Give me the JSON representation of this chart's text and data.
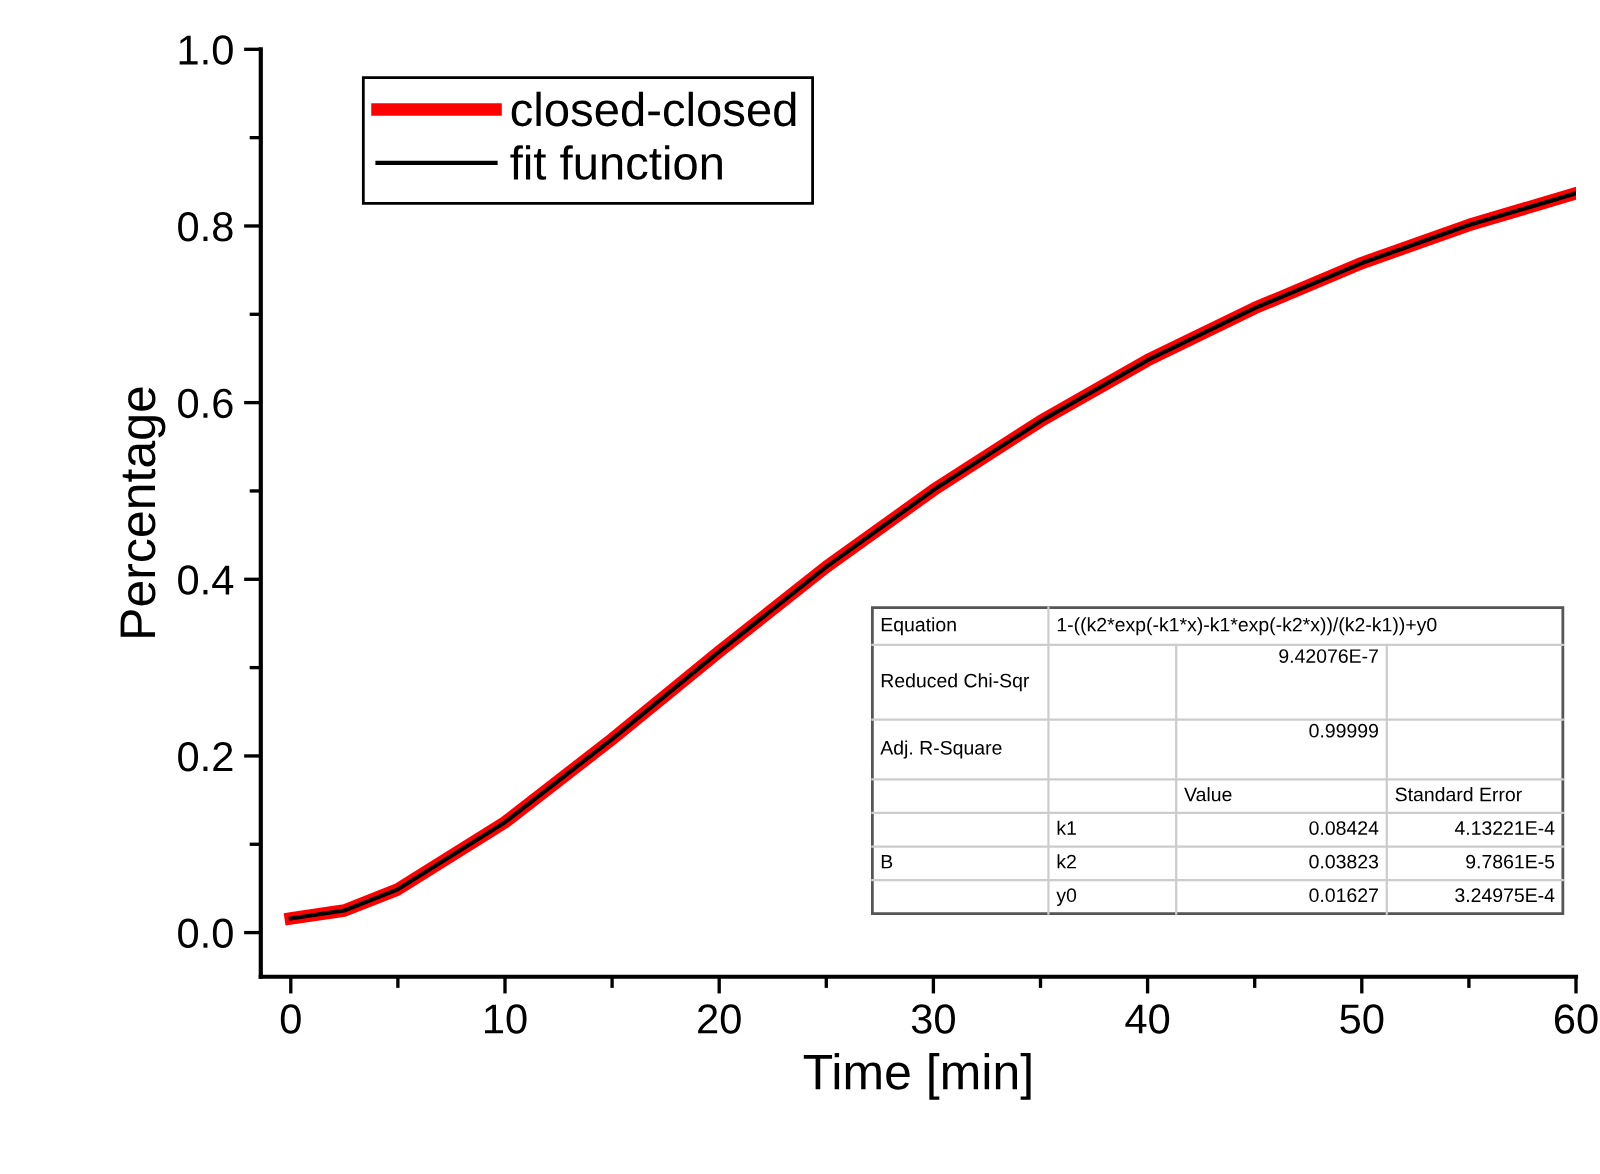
{
  "chart_data": {
    "type": "line",
    "xlabel": "Time [min]",
    "ylabel": "Percentage",
    "x": [
      0,
      2.5,
      5,
      10,
      15,
      20,
      25,
      30,
      35,
      40,
      45,
      50,
      55,
      60
    ],
    "series": [
      {
        "name": "closed-closed",
        "color": "#ff0000",
        "values": [
          0.016,
          0.025,
          0.049,
          0.125,
          0.219,
          0.318,
          0.414,
          0.501,
          0.579,
          0.648,
          0.707,
          0.758,
          0.801,
          0.837
        ]
      },
      {
        "name": "fit function",
        "color": "#000000",
        "values": [
          0.016,
          0.025,
          0.049,
          0.125,
          0.219,
          0.318,
          0.414,
          0.501,
          0.579,
          0.648,
          0.707,
          0.758,
          0.801,
          0.837
        ]
      }
    ],
    "xlim": [
      -1.4,
      60
    ],
    "ylim": [
      -0.05,
      1.0
    ],
    "xticks": [
      0,
      10,
      20,
      30,
      40,
      50,
      60
    ],
    "yticks": [
      {
        "value": 0,
        "label": "0.0"
      },
      0.2,
      0.4,
      0.6,
      0.8,
      {
        "value": 1,
        "label": "1.0"
      }
    ],
    "grid": false,
    "legend": "top left",
    "marker": "none",
    "line_style": "solid",
    "annotations": [
      "Equation",
      "1-((k2*exp(-k1*x)-k1*exp(-k2*x))/(k2-k1))+y0",
      "Reduced Chi-Sqr",
      "9.42076E-7",
      "Adj. R-Square",
      "0.99999",
      "Value",
      "Standard Error",
      "B",
      "k1",
      "0.08424",
      "4.13221E-4",
      "k2",
      "0.03823",
      "9.7861E-5",
      "y0",
      "0.01627",
      "3.24975E-4"
    ]
  }
}
